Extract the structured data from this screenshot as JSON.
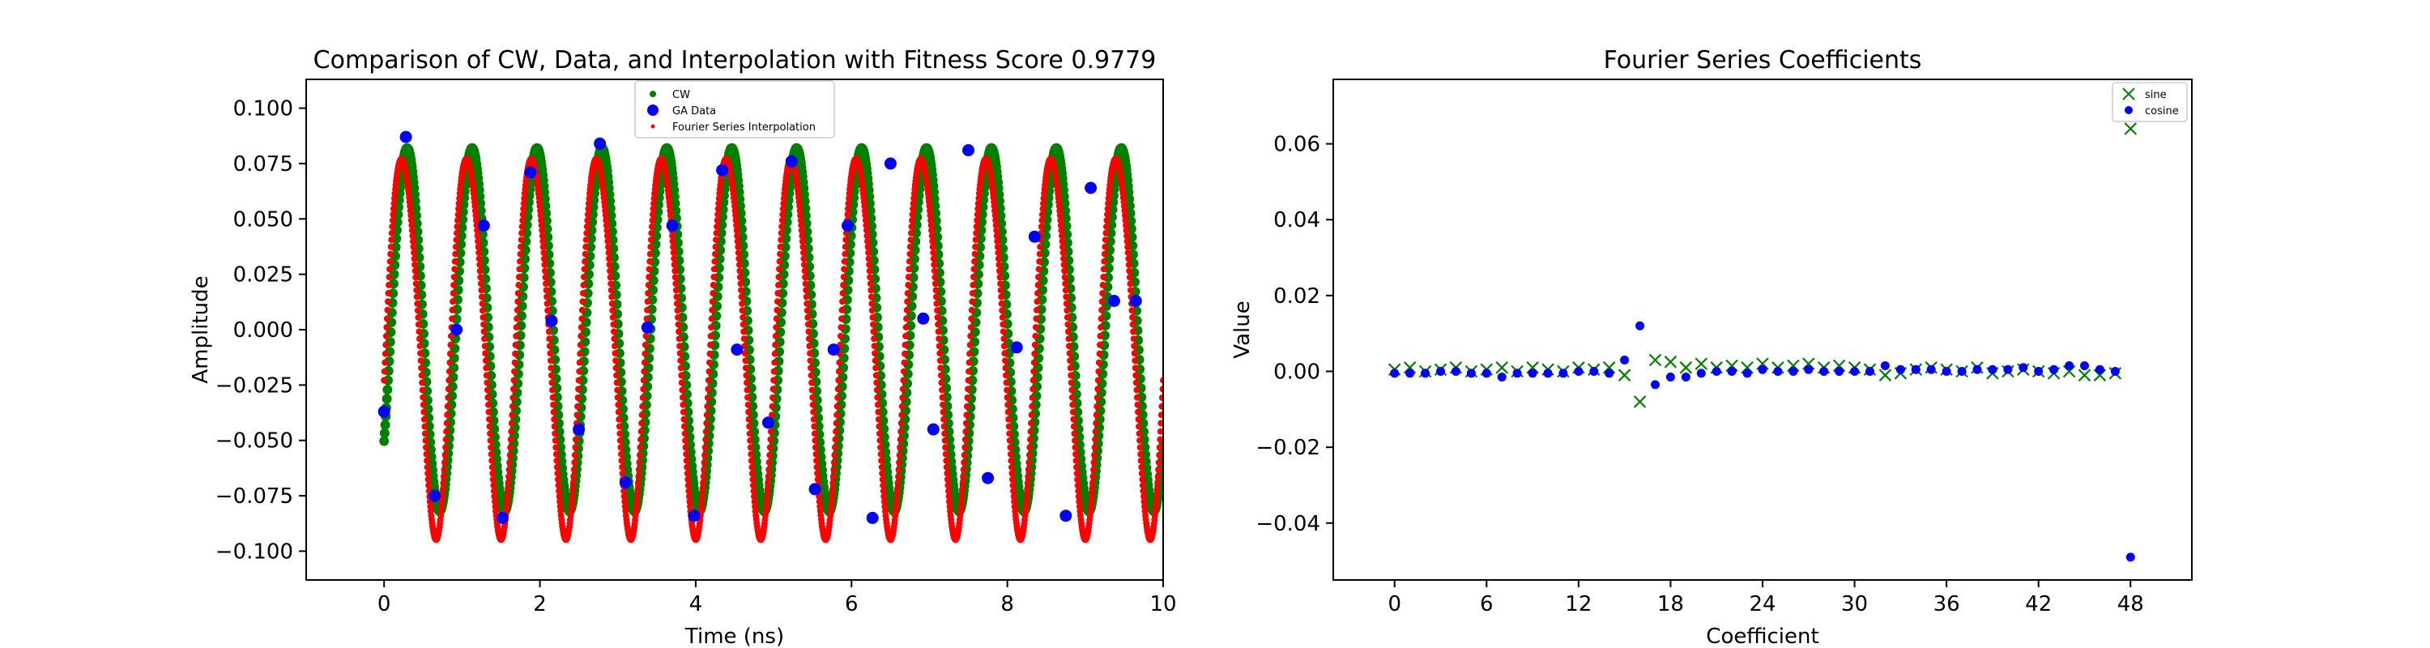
{
  "chart_data": [
    {
      "type": "scatter",
      "title": "Comparison of CW, Data, and Interpolation with Fitness Score 0.9779",
      "xlabel": "Time (ns)",
      "ylabel": "Amplitude",
      "xlim": [
        -1,
        10
      ],
      "ylim": [
        -0.113,
        0.113
      ],
      "xticks": [
        0,
        2,
        4,
        6,
        8,
        10
      ],
      "yticks": [
        -0.1,
        -0.075,
        -0.05,
        -0.025,
        0.0,
        0.025,
        0.05,
        0.075,
        0.1
      ],
      "ytick_labels": [
        "−0.100",
        "−0.075",
        "−0.050",
        "−0.025",
        "0.000",
        "0.025",
        "0.050",
        "0.075",
        "0.100"
      ],
      "grid": false,
      "legend_position": "top-center",
      "series": [
        {
          "name": "CW",
          "color": "#008000",
          "marker": "circle",
          "model": "sine",
          "amplitude": 0.082,
          "frequency_ghz": 1.2,
          "phase_rad": -0.66,
          "x_range": [
            0,
            10
          ]
        },
        {
          "name": "GA Data",
          "color": "#0000ff",
          "marker": "large-circle",
          "x": [
            0.0,
            0.28,
            0.65,
            0.93,
            1.28,
            1.52,
            1.88,
            2.15,
            2.5,
            2.77,
            3.1,
            3.38,
            3.7,
            3.98,
            4.34,
            4.53,
            4.93,
            5.23,
            5.53,
            5.77,
            5.95,
            6.27,
            6.5,
            6.92,
            7.05,
            7.5,
            7.75,
            8.12,
            8.35,
            8.75,
            9.07,
            9.37,
            9.65
          ],
          "y": [
            -0.037,
            0.087,
            -0.075,
            0.0,
            0.047,
            -0.085,
            0.071,
            0.004,
            -0.045,
            0.084,
            -0.069,
            0.001,
            0.047,
            -0.084,
            0.072,
            -0.009,
            -0.042,
            0.076,
            -0.072,
            -0.009,
            0.047,
            -0.085,
            0.075,
            0.005,
            -0.045,
            0.081,
            -0.067,
            -0.008,
            0.042,
            -0.084,
            0.064,
            0.013,
            0.013
          ]
        },
        {
          "name": "Fourier Series Interpolation",
          "color": "#ff0000",
          "marker": "small-dot",
          "model": "modulated-sine",
          "x_range": [
            0,
            10
          ]
        }
      ]
    },
    {
      "type": "scatter",
      "title": "Fourier Series Coefficients",
      "xlabel": "Coefficient",
      "ylabel": "Value",
      "xlim": [
        -4,
        52
      ],
      "ylim": [
        -0.055,
        0.077
      ],
      "xticks": [
        0,
        6,
        12,
        18,
        24,
        30,
        36,
        42,
        48
      ],
      "yticks": [
        -0.04,
        -0.02,
        0.0,
        0.02,
        0.04,
        0.06
      ],
      "ytick_labels": [
        "−0.04",
        "−0.02",
        "0.00",
        "0.02",
        "0.04",
        "0.06"
      ],
      "grid": false,
      "legend_position": "top-right",
      "series": [
        {
          "name": "sine",
          "color": "#008000",
          "marker": "x",
          "x": [
            0,
            1,
            2,
            3,
            4,
            5,
            6,
            7,
            8,
            9,
            10,
            11,
            12,
            13,
            14,
            15,
            16,
            17,
            18,
            19,
            20,
            21,
            22,
            23,
            24,
            25,
            26,
            27,
            28,
            29,
            30,
            31,
            32,
            33,
            34,
            35,
            36,
            37,
            38,
            39,
            40,
            41,
            42,
            43,
            44,
            45,
            46,
            47,
            48
          ],
          "y": [
            0.0005,
            0.001,
            0.0,
            0.0005,
            0.001,
            0.0,
            0.0005,
            0.001,
            0.0,
            0.001,
            0.0005,
            0.0,
            0.001,
            0.0005,
            0.001,
            -0.001,
            -0.008,
            0.003,
            0.0025,
            0.001,
            0.002,
            0.001,
            0.0015,
            0.001,
            0.002,
            0.001,
            0.0015,
            0.002,
            0.001,
            0.0015,
            0.001,
            0.0005,
            -0.001,
            -0.0005,
            0.0005,
            0.001,
            0.0005,
            0.0,
            0.001,
            -0.0005,
            0.0,
            0.0005,
            0.0,
            -0.0005,
            0.0,
            -0.001,
            -0.001,
            -0.0005,
            0.064
          ]
        },
        {
          "name": "cosine",
          "color": "#0000ff",
          "marker": "circle",
          "x": [
            0,
            1,
            2,
            3,
            4,
            5,
            6,
            7,
            8,
            9,
            10,
            11,
            12,
            13,
            14,
            15,
            16,
            17,
            18,
            19,
            20,
            21,
            22,
            23,
            24,
            25,
            26,
            27,
            28,
            29,
            30,
            31,
            32,
            33,
            34,
            35,
            36,
            37,
            38,
            39,
            40,
            41,
            42,
            43,
            44,
            45,
            46,
            47,
            48
          ],
          "y": [
            -0.0005,
            -0.0005,
            -0.0005,
            0.0,
            0.0,
            -0.0005,
            -0.0005,
            -0.0015,
            -0.0005,
            -0.0005,
            -0.0005,
            -0.0005,
            0.0,
            0.0,
            -0.0005,
            0.003,
            0.012,
            -0.0035,
            -0.0015,
            -0.0015,
            -0.0005,
            0.0,
            0.0,
            -0.0005,
            0.0005,
            0.0,
            0.0,
            0.0005,
            0.0,
            0.0,
            0.0,
            0.0,
            0.0015,
            0.0005,
            0.0005,
            0.0005,
            0.0,
            0.0,
            0.0005,
            0.0005,
            0.0005,
            0.001,
            0.0,
            0.0005,
            0.0015,
            0.0015,
            0.0005,
            0.0,
            -0.049
          ]
        }
      ]
    }
  ]
}
